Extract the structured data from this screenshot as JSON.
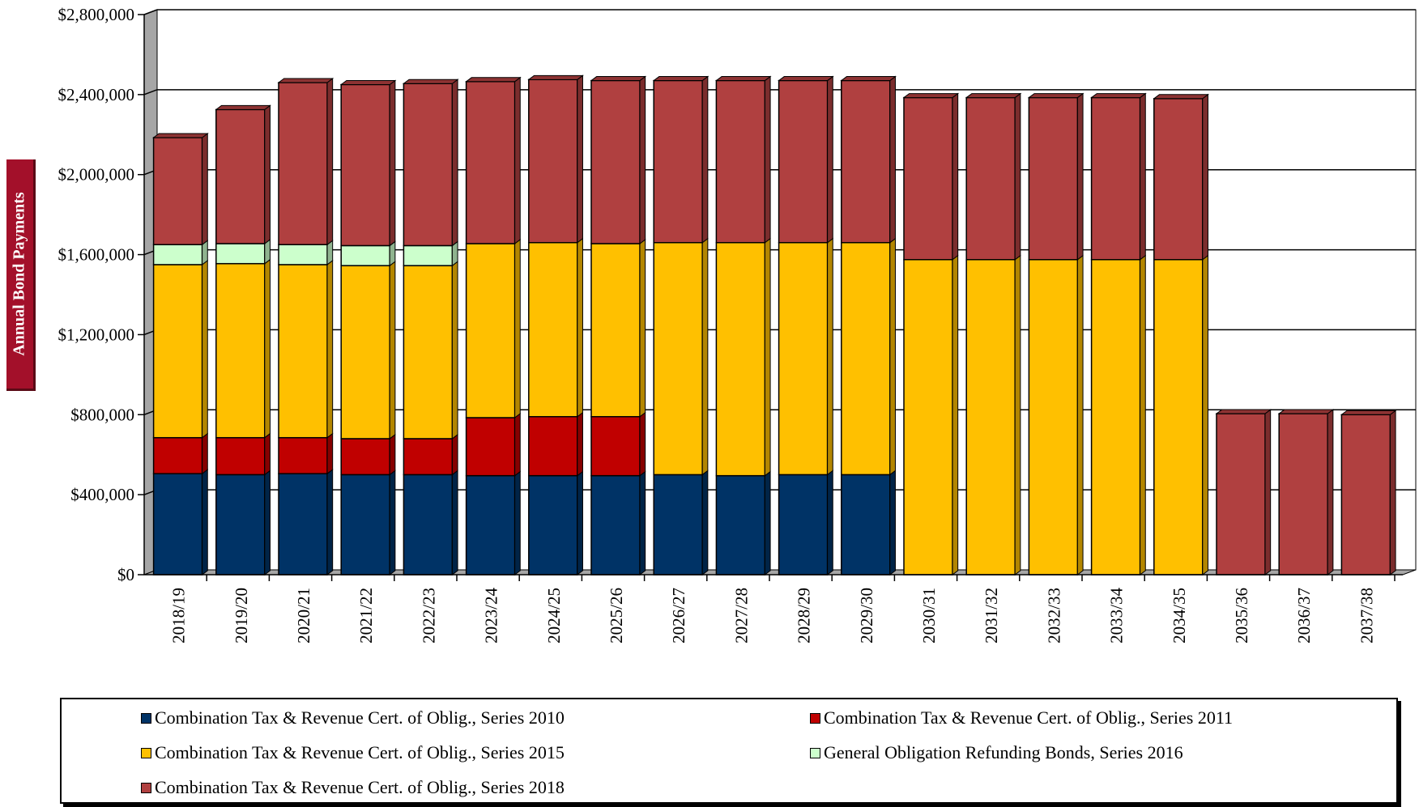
{
  "chart_data": {
    "type": "bar",
    "stacked": true,
    "ylabel": "Annual Bond Payments",
    "ylim": [
      0,
      2800000
    ],
    "yticks": [
      0,
      400000,
      800000,
      1200000,
      1600000,
      2000000,
      2400000,
      2800000
    ],
    "ytick_labels": [
      "$0",
      "$400,000",
      "$800,000",
      "$1,200,000",
      "$1,600,000",
      "$2,000,000",
      "$2,400,000",
      "$2,800,000"
    ],
    "grid": true,
    "legend_position": "bottom",
    "categories": [
      "2018/19",
      "2019/20",
      "2020/21",
      "2021/22",
      "2022/23",
      "2023/24",
      "2024/25",
      "2025/26",
      "2026/27",
      "2027/28",
      "2028/29",
      "2029/30",
      "2030/31",
      "2031/32",
      "2032/33",
      "2033/34",
      "2034/35",
      "2035/36",
      "2036/37",
      "2037/38"
    ],
    "series": [
      {
        "name": "Combination Tax & Revenue Cert. of Oblig., Series 2010",
        "color": "#003366",
        "values": [
          505000,
          500000,
          505000,
          500000,
          500000,
          495000,
          495000,
          495000,
          500000,
          495000,
          500000,
          500000,
          0,
          0,
          0,
          0,
          0,
          0,
          0,
          0
        ]
      },
      {
        "name": "Combination Tax & Revenue Cert. of Oblig., Series 2011",
        "color": "#c00000",
        "values": [
          180000,
          185000,
          180000,
          180000,
          180000,
          290000,
          295000,
          295000,
          0,
          0,
          0,
          0,
          0,
          0,
          0,
          0,
          0,
          0,
          0,
          0
        ]
      },
      {
        "name": "Combination Tax & Revenue Cert. of Oblig., Series 2015",
        "color": "#ffc000",
        "values": [
          865000,
          870000,
          865000,
          865000,
          865000,
          870000,
          870000,
          865000,
          1160000,
          1165000,
          1160000,
          1160000,
          1575000,
          1575000,
          1575000,
          1575000,
          1575000,
          0,
          0,
          0
        ]
      },
      {
        "name": "General Obligation Refunding Bonds, Series 2016",
        "color": "#ccffcc",
        "values": [
          100000,
          100000,
          100000,
          100000,
          100000,
          0,
          0,
          0,
          0,
          0,
          0,
          0,
          0,
          0,
          0,
          0,
          0,
          0,
          0,
          0
        ]
      },
      {
        "name": "Combination Tax & Revenue Cert. of Oblig., Series 2018",
        "color": "#b04040",
        "values": [
          535000,
          670000,
          810000,
          805000,
          810000,
          810000,
          815000,
          815000,
          810000,
          810000,
          810000,
          810000,
          810000,
          810000,
          810000,
          810000,
          805000,
          805000,
          805000,
          800000
        ]
      }
    ]
  }
}
